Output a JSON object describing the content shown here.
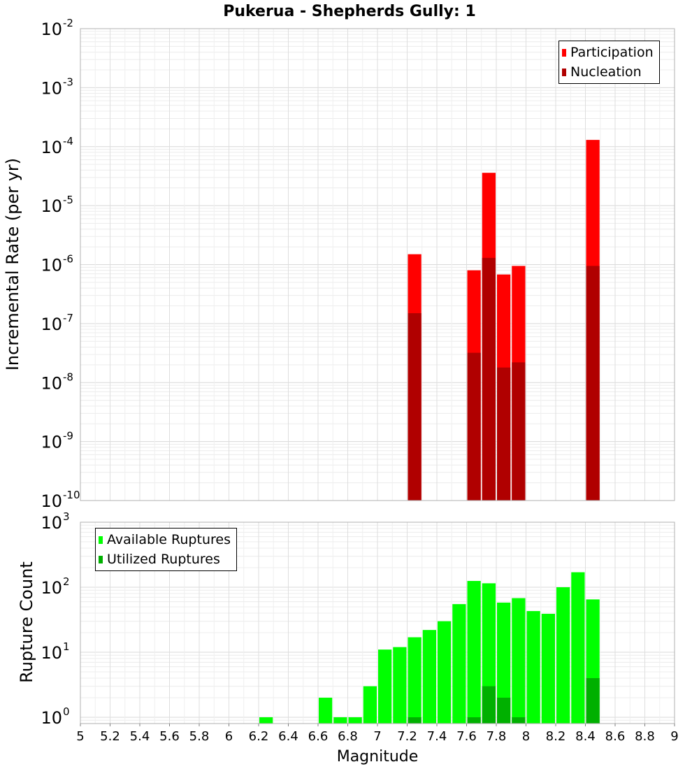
{
  "chart_data": [
    {
      "type": "bar",
      "title": "Pukerua - Shepherds Gully: 1",
      "ylabel": "Incremental Rate (per yr)",
      "xlabel": "",
      "yscale": "log",
      "ylim": [
        1e-10,
        0.01
      ],
      "xlim": [
        5,
        9
      ],
      "y_tick_labels": [
        {
          "base": "10",
          "exp": "-2"
        },
        {
          "base": "10",
          "exp": "-3"
        },
        {
          "base": "10",
          "exp": "-4"
        },
        {
          "base": "10",
          "exp": "-5"
        },
        {
          "base": "10",
          "exp": "-6"
        },
        {
          "base": "10",
          "exp": "-7"
        },
        {
          "base": "10",
          "exp": "-8"
        },
        {
          "base": "10",
          "exp": "-9"
        },
        {
          "base": "10",
          "exp": "-10"
        }
      ],
      "legend_position": "top-right",
      "bar_width": 0.1,
      "series": [
        {
          "name": "Participation",
          "color": "#ff0000",
          "points": [
            {
              "x": 7.25,
              "y": 1.5e-06
            },
            {
              "x": 7.65,
              "y": 8e-07
            },
            {
              "x": 7.75,
              "y": 3.6e-05
            },
            {
              "x": 7.85,
              "y": 6.8e-07
            },
            {
              "x": 7.95,
              "y": 9.5e-07
            },
            {
              "x": 8.45,
              "y": 0.00013
            }
          ]
        },
        {
          "name": "Nucleation",
          "color": "#b00000",
          "points": [
            {
              "x": 7.25,
              "y": 1.5e-07
            },
            {
              "x": 7.65,
              "y": 3.2e-08
            },
            {
              "x": 7.75,
              "y": 1.3e-06
            },
            {
              "x": 7.85,
              "y": 1.8e-08
            },
            {
              "x": 7.95,
              "y": 2.2e-08
            },
            {
              "x": 8.45,
              "y": 9.5e-07
            }
          ]
        }
      ]
    },
    {
      "type": "bar",
      "title": "",
      "ylabel": "Rupture Count",
      "xlabel": "Magnitude",
      "yscale": "log",
      "ylim": [
        0.8,
        1000
      ],
      "xlim": [
        5,
        9
      ],
      "y_tick_labels": [
        {
          "base": "10",
          "exp": "3"
        },
        {
          "base": "10",
          "exp": "2"
        },
        {
          "base": "10",
          "exp": "1"
        },
        {
          "base": "10",
          "exp": "0"
        }
      ],
      "x_tick_labels": [
        "5",
        "5.2",
        "5.4",
        "5.6",
        "5.8",
        "6",
        "6.2",
        "6.4",
        "6.6",
        "6.8",
        "7",
        "7.2",
        "7.4",
        "7.6",
        "7.8",
        "8",
        "8.2",
        "8.4",
        "8.6",
        "8.8",
        "9"
      ],
      "legend_position": "top-left",
      "bar_width": 0.1,
      "series": [
        {
          "name": "Available Ruptures",
          "color": "#00ff00",
          "points": [
            {
              "x": 6.25,
              "y": 1
            },
            {
              "x": 6.65,
              "y": 2
            },
            {
              "x": 6.75,
              "y": 1
            },
            {
              "x": 6.85,
              "y": 1
            },
            {
              "x": 6.95,
              "y": 3
            },
            {
              "x": 7.05,
              "y": 11
            },
            {
              "x": 7.15,
              "y": 12
            },
            {
              "x": 7.25,
              "y": 17
            },
            {
              "x": 7.35,
              "y": 22
            },
            {
              "x": 7.45,
              "y": 30
            },
            {
              "x": 7.55,
              "y": 55
            },
            {
              "x": 7.65,
              "y": 125
            },
            {
              "x": 7.75,
              "y": 115
            },
            {
              "x": 7.85,
              "y": 58
            },
            {
              "x": 7.95,
              "y": 68
            },
            {
              "x": 8.05,
              "y": 43
            },
            {
              "x": 8.15,
              "y": 39
            },
            {
              "x": 8.25,
              "y": 100
            },
            {
              "x": 8.35,
              "y": 170
            },
            {
              "x": 8.45,
              "y": 65
            }
          ]
        },
        {
          "name": "Utilized Ruptures",
          "color": "#00b000",
          "points": [
            {
              "x": 7.25,
              "y": 1
            },
            {
              "x": 7.65,
              "y": 1
            },
            {
              "x": 7.75,
              "y": 3
            },
            {
              "x": 7.85,
              "y": 2
            },
            {
              "x": 7.95,
              "y": 1
            },
            {
              "x": 8.45,
              "y": 4
            }
          ]
        }
      ]
    }
  ]
}
